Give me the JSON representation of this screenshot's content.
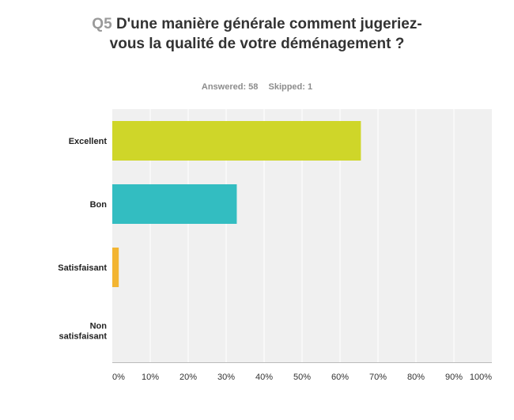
{
  "question": {
    "number": "Q5",
    "text": "D'une manière générale comment jugeriez-vous la qualité de votre déménagement ?"
  },
  "stats": {
    "answered": "Answered: 58",
    "skipped": "Skipped: 1"
  },
  "chart_data": {
    "type": "bar",
    "orientation": "horizontal",
    "categories": [
      "Excellent",
      "Bon",
      "Satisfaisant",
      "Non satisfaisant"
    ],
    "values": [
      65.5,
      32.8,
      1.7,
      0
    ],
    "xlim": [
      0,
      100
    ],
    "x_tick_labels": [
      "0%",
      "10%",
      "20%",
      "30%",
      "40%",
      "50%",
      "60%",
      "70%",
      "80%",
      "90%",
      "100%"
    ],
    "grid": true,
    "colors": [
      "#cfd629",
      "#33bdc1",
      "#f3b532",
      "#9b59b6"
    ],
    "plot_background": "#f0f0f0"
  }
}
